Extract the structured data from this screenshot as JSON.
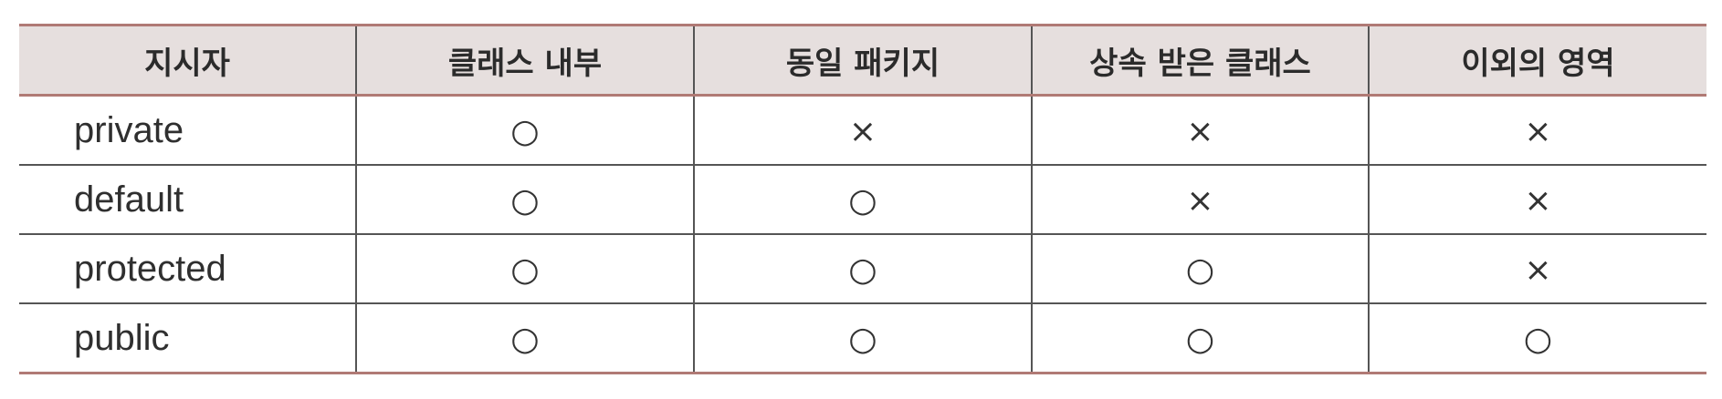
{
  "table": {
    "headers": [
      "지시자",
      "클래스 내부",
      "동일 패키지",
      "상속 받은 클래스",
      "이외의 영역"
    ],
    "rows": [
      {
        "label": "private",
        "cells": [
          "○",
          "×",
          "×",
          "×"
        ]
      },
      {
        "label": "default",
        "cells": [
          "○",
          "○",
          "×",
          "×"
        ]
      },
      {
        "label": "protected",
        "cells": [
          "○",
          "○",
          "○",
          "×"
        ]
      },
      {
        "label": "public",
        "cells": [
          "○",
          "○",
          "○",
          "○"
        ]
      }
    ]
  },
  "colors": {
    "header_background": "#e6dfde",
    "accent_rule": "#b07a75",
    "grid_line": "#555555"
  }
}
